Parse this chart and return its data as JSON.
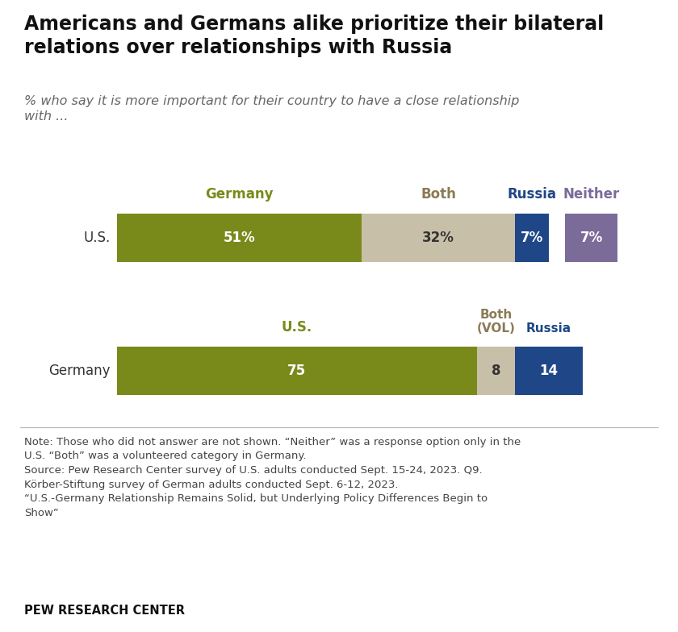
{
  "title": "Americans and Germans alike prioritize their bilateral\nrelations over relationships with Russia",
  "subtitle": "% who say it is more important for their country to have a close relationship\nwith ...",
  "us_row": {
    "label": "U.S.",
    "segments": [
      {
        "label": "Germany",
        "value": 51,
        "pct_label": "51%",
        "color": "#7a8a1a",
        "text_color": "#ffffff"
      },
      {
        "label": "Both",
        "value": 32,
        "pct_label": "32%",
        "color": "#c8bfa8",
        "text_color": "#333333"
      },
      {
        "label": "Russia",
        "value": 7,
        "pct_label": "7%",
        "color": "#1f4788",
        "text_color": "#ffffff"
      }
    ],
    "neither": {
      "label": "Neither",
      "value": 7,
      "pct_label": "7%",
      "color": "#7b6b99",
      "text_color": "#ffffff"
    }
  },
  "germany_row": {
    "label": "Germany",
    "segments": [
      {
        "label": "U.S.",
        "value": 75,
        "pct_label": "75",
        "color": "#7a8a1a",
        "text_color": "#ffffff"
      },
      {
        "label": "Both(VOL)",
        "value": 8,
        "pct_label": "8",
        "color": "#c8bfa8",
        "text_color": "#333333"
      },
      {
        "label": "Russia",
        "value": 14,
        "pct_label": "14",
        "color": "#1f4788",
        "text_color": "#ffffff"
      }
    ]
  },
  "header_colors": {
    "Germany_col": "#7a8a1a",
    "Both_col": "#8b7a55",
    "Russia_col": "#1f4788",
    "Neither_col": "#7b6b99",
    "US_col": "#7a8a1a",
    "BothVOL_col": "#8b7a55"
  },
  "note_text": "Note: Those who did not answer are not shown. “Neither” was a response option only in the\nU.S. “Both” was a volunteered category in Germany.\nSource: Pew Research Center survey of U.S. adults conducted Sept. 15-24, 2023. Q9.\nKörber-Stiftung survey of German adults conducted Sept. 6-12, 2023.\n“U.S.-Germany Relationship Remains Solid, but Underlying Policy Differences Begin to\nShow”",
  "source_label": "PEW RESEARCH CENTER",
  "background_color": "#ffffff"
}
